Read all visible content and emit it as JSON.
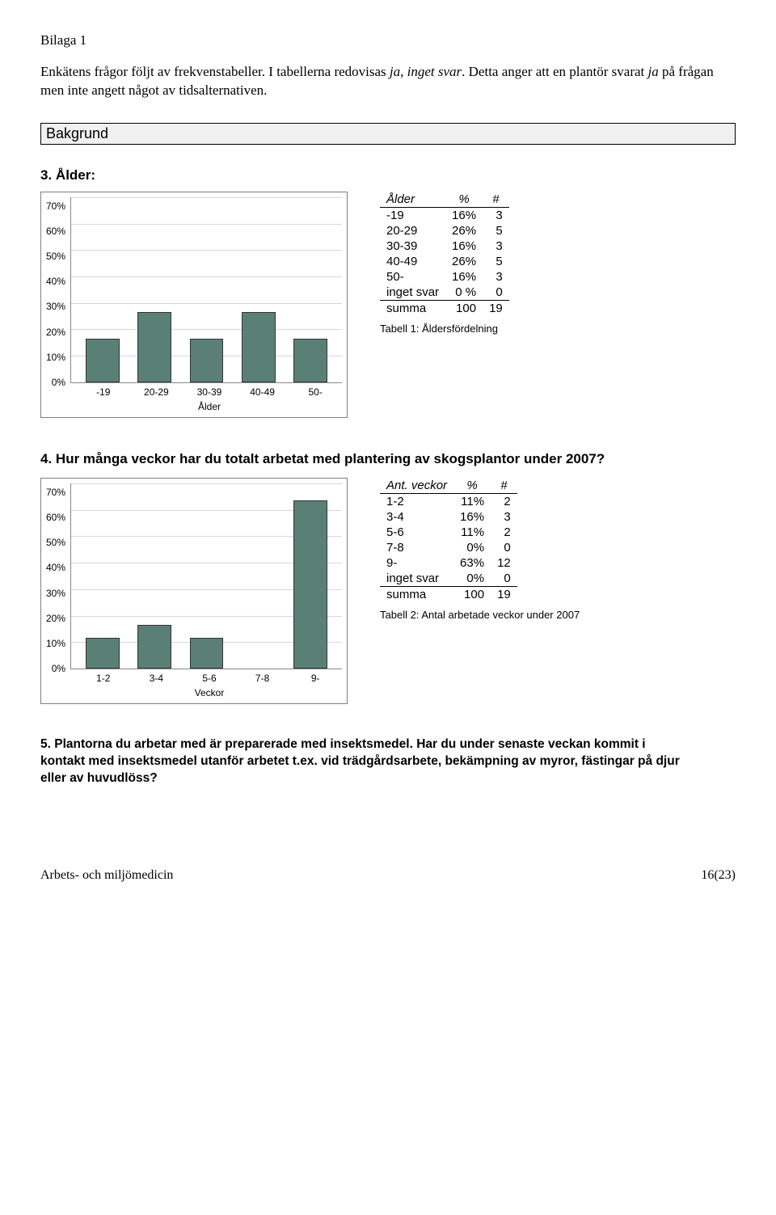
{
  "bilaga": "Bilaga 1",
  "intro": {
    "part1": "Enkätens frågor följt av frekvenstabeller. I tabellerna redovisas ",
    "italic1": "ja, inget svar",
    "part2": ". Detta anger att en plantör svarat ",
    "italic2": "ja",
    "part3": " på frågan men inte angett något av tidsalternativen."
  },
  "bakgrund": "Bakgrund",
  "q3": {
    "num": "3.",
    "title": "Ålder:",
    "chart": {
      "type": "bar",
      "ylim": [
        0,
        70
      ],
      "ytick_step": 10,
      "y_ticks": [
        "70%",
        "60%",
        "50%",
        "40%",
        "30%",
        "20%",
        "10%",
        "0%"
      ],
      "categories": [
        "-19",
        "20-29",
        "30-39",
        "40-49",
        "50-"
      ],
      "values": [
        16,
        26,
        16,
        26,
        16
      ],
      "x_title": "Ålder",
      "bar_color": "#5a8076",
      "bar_border": "#333333",
      "background": "#ffffff",
      "grid_color": "#d8d8d8",
      "frame_border": "#7f7f7f",
      "font_family": "Arial",
      "label_fontsize": 12
    },
    "table": {
      "headers": [
        "Ålder",
        "%",
        "#"
      ],
      "rows": [
        [
          "-19",
          "16%",
          "3"
        ],
        [
          "20-29",
          "26%",
          "5"
        ],
        [
          "30-39",
          "16%",
          "3"
        ],
        [
          "40-49",
          "26%",
          "5"
        ],
        [
          "50-",
          "16%",
          "3"
        ],
        [
          "inget svar",
          "0 %",
          "0"
        ]
      ],
      "summa": [
        "summa",
        "100",
        "19"
      ],
      "caption": "Tabell 1: Åldersfördelning"
    }
  },
  "q4": {
    "num": "4.",
    "title": "Hur många veckor har du totalt arbetat med plantering av skogsplantor under 2007?",
    "chart": {
      "type": "bar",
      "ylim": [
        0,
        70
      ],
      "ytick_step": 10,
      "y_ticks": [
        "70%",
        "60%",
        "50%",
        "40%",
        "30%",
        "20%",
        "10%",
        "0%"
      ],
      "categories": [
        "1-2",
        "3-4",
        "5-6",
        "7-8",
        "9-"
      ],
      "values": [
        11,
        16,
        11,
        0,
        63
      ],
      "x_title": "Veckor",
      "bar_color": "#5a8076",
      "bar_border": "#333333",
      "background": "#ffffff",
      "grid_color": "#d8d8d8",
      "frame_border": "#7f7f7f",
      "font_family": "Arial",
      "label_fontsize": 12
    },
    "table": {
      "headers": [
        "Ant. veckor",
        "%",
        "#"
      ],
      "rows": [
        [
          "1-2",
          "11%",
          "2"
        ],
        [
          "3-4",
          "16%",
          "3"
        ],
        [
          "5-6",
          "11%",
          "2"
        ],
        [
          "7-8",
          "0%",
          "0"
        ],
        [
          "9-",
          "63%",
          "12"
        ],
        [
          "inget svar",
          "0%",
          "0"
        ]
      ],
      "summa": [
        "summa",
        "100",
        "19"
      ],
      "caption": "Tabell 2: Antal arbetade veckor under 2007"
    }
  },
  "q5": {
    "num": "5.",
    "title": "Plantorna du arbetar med är preparerade med insektsmedel. Har du under senaste veckan kommit i kontakt med insektsmedel utanför arbetet t.ex. vid trädgårdsarbete, bekämpning av myror, fästingar på djur eller av huvudlöss?"
  },
  "footer": {
    "left": "Arbets- och miljömedicin",
    "right": "16(23)"
  }
}
